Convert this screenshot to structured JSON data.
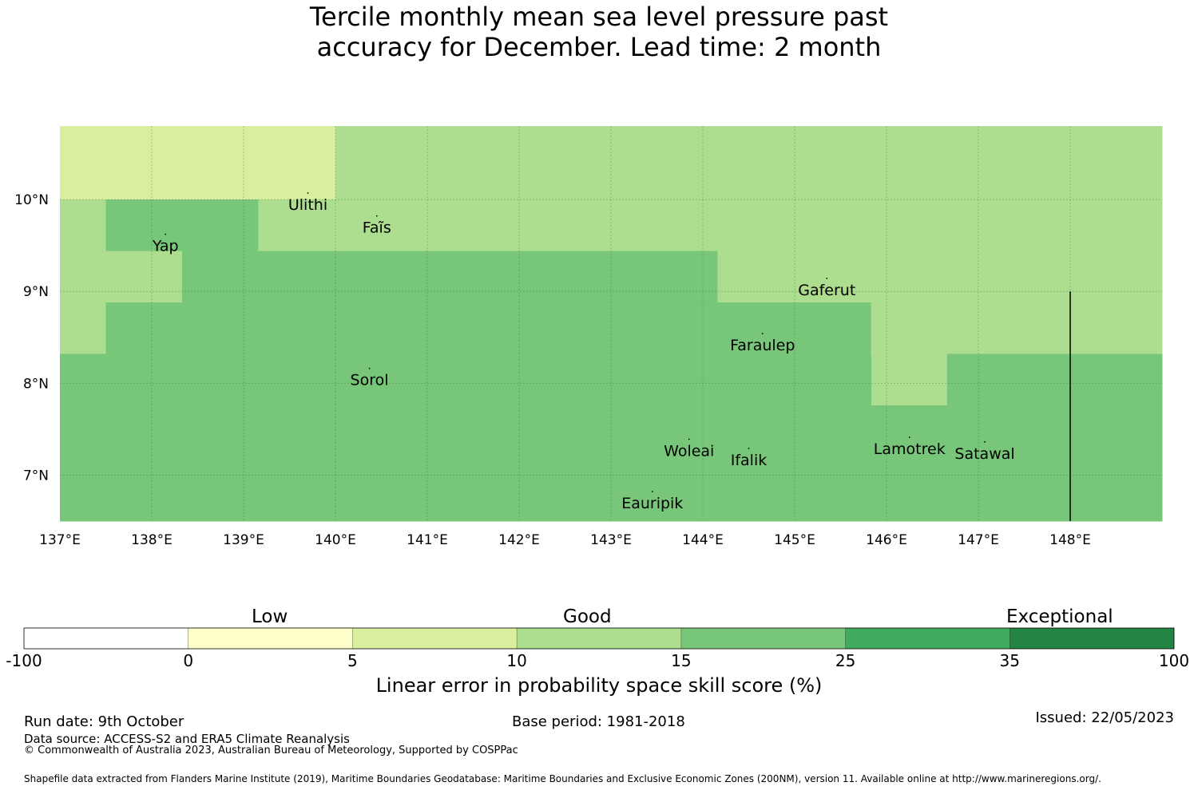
{
  "title": {
    "line1": "Tercile monthly mean sea level pressure past",
    "line2": "accuracy for December. Lead time: 2 month"
  },
  "map": {
    "lon_range": [
      137.0,
      149.0
    ],
    "lat_range": [
      6.5,
      10.8
    ],
    "lon_ticks": [
      {
        "value": 137,
        "label": "137°E"
      },
      {
        "value": 138,
        "label": "138°E"
      },
      {
        "value": 139,
        "label": "139°E"
      },
      {
        "value": 140,
        "label": "140°E"
      },
      {
        "value": 141,
        "label": "141°E"
      },
      {
        "value": 142,
        "label": "142°E"
      },
      {
        "value": 143,
        "label": "143°E"
      },
      {
        "value": 144,
        "label": "144°E"
      },
      {
        "value": 145,
        "label": "145°E"
      },
      {
        "value": 146,
        "label": "146°E"
      },
      {
        "value": 147,
        "label": "147°E"
      },
      {
        "value": 148,
        "label": "148°E"
      }
    ],
    "lat_ticks": [
      {
        "value": 10,
        "label": "10°N"
      },
      {
        "value": 9,
        "label": "9°N"
      },
      {
        "value": 8,
        "label": "8°N"
      },
      {
        "value": 7,
        "label": "7°N"
      }
    ],
    "regions": [
      {
        "lon": [
          137.0,
          140.0
        ],
        "lat": [
          10.0,
          10.8
        ],
        "color": "#d9ef9f"
      },
      {
        "lon": [
          140.0,
          149.0
        ],
        "lat": [
          10.0,
          10.8
        ],
        "color": "#addd8e"
      },
      {
        "lon": [
          137.0,
          137.5
        ],
        "lat": [
          8.32,
          10.0
        ],
        "color": "#addd8e"
      },
      {
        "lon": [
          137.5,
          139.16
        ],
        "lat": [
          9.44,
          10.0
        ],
        "color": "#78c679"
      },
      {
        "lon": [
          137.5,
          138.33
        ],
        "lat": [
          8.88,
          9.44
        ],
        "color": "#addd8e"
      },
      {
        "lon": [
          138.33,
          139.16
        ],
        "lat": [
          8.88,
          9.44
        ],
        "color": "#78c679"
      },
      {
        "lon": [
          139.16,
          149.0
        ],
        "lat": [
          9.44,
          10.0
        ],
        "color": "#addd8e"
      },
      {
        "lon": [
          139.16,
          144.16
        ],
        "lat": [
          8.88,
          9.44
        ],
        "color": "#78c679"
      },
      {
        "lon": [
          144.16,
          149.0
        ],
        "lat": [
          8.88,
          9.44
        ],
        "color": "#addd8e"
      },
      {
        "lon": [
          137.5,
          145.83
        ],
        "lat": [
          8.32,
          8.88
        ],
        "color": "#78c679"
      },
      {
        "lon": [
          145.83,
          146.66
        ],
        "lat": [
          7.76,
          8.88
        ],
        "color": "#addd8e"
      },
      {
        "lon": [
          146.66,
          149.0
        ],
        "lat": [
          8.32,
          8.88
        ],
        "color": "#addd8e"
      },
      {
        "lon": [
          137.0,
          145.83
        ],
        "lat": [
          6.5,
          8.32
        ],
        "color": "#78c679"
      },
      {
        "lon": [
          145.83,
          146.66
        ],
        "lat": [
          6.5,
          7.76
        ],
        "color": "#78c679"
      },
      {
        "lon": [
          146.66,
          149.0
        ],
        "lat": [
          6.5,
          8.32
        ],
        "color": "#78c679"
      }
    ],
    "boundary_line": {
      "lon": 148.0,
      "lat": [
        6.5,
        9.0
      ]
    },
    "places": [
      {
        "name": "Ulithi",
        "lon": 139.7,
        "lat": 9.95
      },
      {
        "name": "Faĩs",
        "lon": 140.45,
        "lat": 9.7
      },
      {
        "name": "Yap",
        "lon": 138.15,
        "lat": 9.5
      },
      {
        "name": "Gaferut",
        "lon": 145.35,
        "lat": 9.02
      },
      {
        "name": "Faraulep",
        "lon": 144.65,
        "lat": 8.42
      },
      {
        "name": "Sorol",
        "lon": 140.37,
        "lat": 8.04
      },
      {
        "name": "Woleai",
        "lon": 143.85,
        "lat": 7.27
      },
      {
        "name": "Ifalik",
        "lon": 144.5,
        "lat": 7.17
      },
      {
        "name": "Lamotrek",
        "lon": 146.25,
        "lat": 7.29
      },
      {
        "name": "Satawal",
        "lon": 147.07,
        "lat": 7.24
      },
      {
        "name": "Eauripik",
        "lon": 143.45,
        "lat": 6.7
      }
    ]
  },
  "colorbar": {
    "category_labels": {
      "low": "Low",
      "good": "Good",
      "exceptional": "Exceptional"
    },
    "bins": [
      {
        "from": -100,
        "to": 0,
        "color": "#ffffff"
      },
      {
        "from": 0,
        "to": 5,
        "color": "#ffffcc"
      },
      {
        "from": 5,
        "to": 10,
        "color": "#d9ef9f"
      },
      {
        "from": 10,
        "to": 15,
        "color": "#addd8e"
      },
      {
        "from": 15,
        "to": 25,
        "color": "#78c679"
      },
      {
        "from": 25,
        "to": 35,
        "color": "#41ab5d"
      },
      {
        "from": 35,
        "to": 100,
        "color": "#238443"
      }
    ],
    "tick_labels": [
      "-100",
      "0",
      "5",
      "10",
      "15",
      "25",
      "35",
      "100"
    ],
    "axis_label": "Linear error in probability space skill score (%)"
  },
  "footer": {
    "run_date": "Run date: 9th October",
    "base_period": "Base period: 1981-2018",
    "issued": "Issued: 22/05/2023",
    "data_source": "Data source: ACCESS-S2 and ERA5 Climate Reanalysis",
    "copyright": "© Commonwealth of Australia 2023, Australian Bureau of Meteorology, Supported by COSPPac",
    "shapefile": "Shapefile data extracted from Flanders Marine Institute (2019), Maritime Boundaries Geodatabase: Maritime Boundaries and Exclusive Economic Zones (200NM), version 11. Available online at http://www.marineregions.org/."
  }
}
